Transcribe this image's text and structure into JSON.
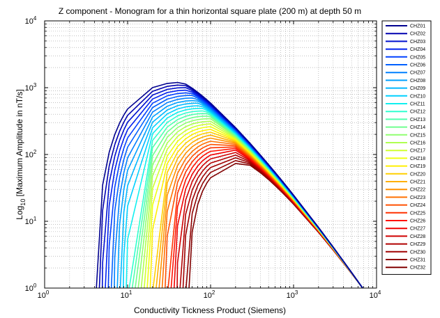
{
  "chart_data": {
    "type": "line",
    "title": "Z component - Monogram for a thin horizontal square plate (200 m) at depth 50 m",
    "xlabel": "Conductivity Tickness Product (Siemens)",
    "ylabel": {
      "prefix": "Log",
      "subscript": "10",
      "suffix": " [Maximum Amplitude in nT/s]"
    },
    "xscale": "log",
    "yscale": "log",
    "xlim": [
      1,
      10000
    ],
    "ylim": [
      1,
      10000
    ],
    "grid": true,
    "legend_location": "right, outside plot",
    "x_ticks": [
      {
        "base": "10",
        "exp": "0"
      },
      {
        "base": "10",
        "exp": "1"
      },
      {
        "base": "10",
        "exp": "2"
      },
      {
        "base": "10",
        "exp": "3"
      },
      {
        "base": "10",
        "exp": "4"
      }
    ],
    "y_ticks": [
      {
        "base": "10",
        "exp": "0"
      },
      {
        "base": "10",
        "exp": "1"
      },
      {
        "base": "10",
        "exp": "2"
      },
      {
        "base": "10",
        "exp": "3"
      },
      {
        "base": "10",
        "exp": "4"
      }
    ],
    "series_names": [
      "CHZ01",
      "CHZ02",
      "CHZ03",
      "CHZ04",
      "CHZ05",
      "CHZ06",
      "CHZ07",
      "CHZ08",
      "CHZ09",
      "CHZ10",
      "CHZ11",
      "CHZ12",
      "CHZ13",
      "CHZ14",
      "CHZ15",
      "CHZ16",
      "CHZ17",
      "CHZ18",
      "CHZ19",
      "CHZ20",
      "CHZ21",
      "CHZ22",
      "CHZ23",
      "CHZ24",
      "CHZ25",
      "CHZ26",
      "CHZ27",
      "CHZ28",
      "CHZ29",
      "CHZ30",
      "CHZ31",
      "CHZ32"
    ],
    "series_colors": [
      "#00008f",
      "#0000b0",
      "#0010cf",
      "#0020ef",
      "#0040ff",
      "#0060ff",
      "#0080ff",
      "#00a0ff",
      "#00b8ff",
      "#00d0ff",
      "#10efef",
      "#30ffcf",
      "#50ffaf",
      "#70ff8f",
      "#90ff70",
      "#afff50",
      "#cfff30",
      "#efff10",
      "#ffef00",
      "#ffcf00",
      "#ffb000",
      "#ff9000",
      "#ff7000",
      "#ff5000",
      "#ff3000",
      "#ff1000",
      "#ef0000",
      "#cf0000",
      "#b00000",
      "#a00000",
      "#900000",
      "#800000"
    ],
    "series_model": {
      "onset_x_first": 4.2,
      "onset_x_last": 55,
      "peak_x_first": 45,
      "peak_x_last": 260,
      "peak_y_first": 1200,
      "peak_y_last": 75,
      "end_x": 6800,
      "end_y": 1,
      "note_x_values": [
        4,
        5,
        6,
        7,
        8,
        9,
        10,
        20,
        30,
        40,
        50,
        60,
        70,
        80,
        90,
        100,
        200,
        300,
        400,
        500,
        600,
        700,
        800,
        900,
        1000,
        2000,
        3000,
        4000,
        5000,
        6000,
        7000
      ]
    }
  }
}
